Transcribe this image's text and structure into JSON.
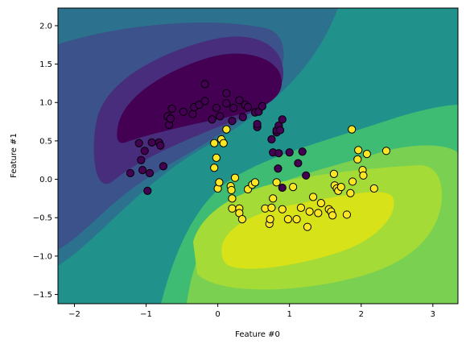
{
  "chart_data": {
    "type": "scatter",
    "background": "filled-contour decision function (viridis)",
    "xlabel": "Feature #0",
    "ylabel": "Feature #1",
    "xlim": [
      -2.23,
      3.35
    ],
    "ylim": [
      -1.62,
      2.23
    ],
    "xticks": [
      -2,
      -1,
      0,
      1,
      2,
      3
    ],
    "yticks": [
      -1.5,
      -1.0,
      -0.5,
      0.0,
      0.5,
      1.0,
      1.5,
      2.0
    ],
    "xtick_labels": [
      "−2",
      "−1",
      "0",
      "1",
      "2",
      "3"
    ],
    "ytick_labels": [
      "−1.5",
      "−1.0",
      "−0.5",
      "0.0",
      "0.5",
      "1.0",
      "1.5",
      "2.0"
    ],
    "grid": false,
    "colors": {
      "class0": "#440154",
      "class1": "#fde725",
      "marker_edge": "#000000",
      "levels": [
        "#440154",
        "#472d7b",
        "#3b528b",
        "#2c728e",
        "#21918c",
        "#28ae80",
        "#5ec962",
        "#addc30",
        "#d8e219"
      ]
    },
    "series": [
      {
        "points": [
          [
            -1.22,
            0.08
          ],
          [
            -1.1,
            0.47
          ],
          [
            -1.07,
            0.25
          ],
          [
            -1.05,
            0.12
          ],
          [
            -1.02,
            0.37
          ],
          [
            -0.98,
            -0.15
          ],
          [
            -0.95,
            0.08
          ],
          [
            -0.92,
            0.48
          ],
          [
            -0.82,
            0.48
          ],
          [
            -0.8,
            0.44
          ],
          [
            -0.76,
            0.17
          ],
          [
            -0.7,
            0.82
          ],
          [
            -0.68,
            0.71
          ],
          [
            -0.66,
            0.79
          ],
          [
            -0.64,
            0.92
          ],
          [
            -0.48,
            0.88
          ],
          [
            -0.35,
            0.85
          ],
          [
            -0.33,
            0.94
          ],
          [
            -0.26,
            0.97
          ],
          [
            -0.18,
            1.02
          ],
          [
            -0.18,
            1.24
          ],
          [
            -0.08,
            0.78
          ],
          [
            -0.02,
            0.93
          ],
          [
            0.03,
            0.82
          ],
          [
            0.12,
            0.99
          ],
          [
            0.12,
            1.12
          ],
          [
            0.2,
            0.76
          ],
          [
            0.22,
            0.93
          ],
          [
            0.3,
            1.03
          ],
          [
            0.35,
            0.81
          ],
          [
            0.38,
            0.97
          ],
          [
            0.42,
            0.94
          ],
          [
            0.52,
            0.87
          ],
          [
            0.55,
            0.68
          ],
          [
            0.55,
            0.72
          ],
          [
            0.57,
            0.88
          ],
          [
            0.62,
            0.95
          ],
          [
            0.75,
            0.52
          ],
          [
            0.77,
            0.35
          ],
          [
            0.82,
            0.61
          ],
          [
            0.82,
            0.64
          ],
          [
            0.85,
            0.7
          ],
          [
            0.84,
            0.14
          ],
          [
            0.85,
            0.34
          ],
          [
            0.87,
            0.64
          ],
          [
            0.9,
            0.78
          ],
          [
            0.9,
            -0.11
          ],
          [
            1.0,
            0.35
          ],
          [
            1.12,
            0.21
          ],
          [
            1.18,
            0.36
          ],
          [
            1.23,
            0.05
          ]
        ]
      },
      {
        "points": [
          [
            -0.05,
            0.47
          ],
          [
            -0.05,
            0.15
          ],
          [
            -0.02,
            0.28
          ],
          [
            0.0,
            -0.12
          ],
          [
            0.02,
            -0.04
          ],
          [
            0.05,
            0.52
          ],
          [
            0.08,
            0.47
          ],
          [
            0.12,
            0.65
          ],
          [
            0.18,
            -0.09
          ],
          [
            0.19,
            -0.14
          ],
          [
            0.2,
            -0.25
          ],
          [
            0.2,
            -0.38
          ],
          [
            0.24,
            0.02
          ],
          [
            0.3,
            -0.38
          ],
          [
            0.3,
            -0.44
          ],
          [
            0.34,
            -0.52
          ],
          [
            0.42,
            -0.13
          ],
          [
            0.48,
            -0.07
          ],
          [
            0.52,
            -0.04
          ],
          [
            0.66,
            -0.38
          ],
          [
            0.72,
            -0.58
          ],
          [
            0.73,
            -0.52
          ],
          [
            0.75,
            -0.37
          ],
          [
            0.77,
            -0.25
          ],
          [
            0.82,
            -0.04
          ],
          [
            0.9,
            -0.39
          ],
          [
            0.98,
            -0.52
          ],
          [
            1.05,
            -0.1
          ],
          [
            1.1,
            -0.52
          ],
          [
            1.16,
            -0.37
          ],
          [
            1.25,
            -0.62
          ],
          [
            1.28,
            -0.42
          ],
          [
            1.33,
            -0.23
          ],
          [
            1.4,
            -0.44
          ],
          [
            1.44,
            -0.31
          ],
          [
            1.55,
            -0.39
          ],
          [
            1.58,
            -0.42
          ],
          [
            1.6,
            -0.47
          ],
          [
            1.62,
            0.07
          ],
          [
            1.63,
            -0.08
          ],
          [
            1.66,
            -0.12
          ],
          [
            1.68,
            -0.15
          ],
          [
            1.72,
            -0.1
          ],
          [
            1.8,
            -0.46
          ],
          [
            1.85,
            -0.18
          ],
          [
            1.87,
            0.65
          ],
          [
            1.88,
            -0.03
          ],
          [
            1.95,
            0.26
          ],
          [
            1.96,
            0.38
          ],
          [
            2.02,
            0.12
          ],
          [
            2.03,
            0.05
          ],
          [
            2.08,
            0.33
          ],
          [
            2.18,
            -0.12
          ],
          [
            2.35,
            0.37
          ]
        ]
      }
    ]
  }
}
